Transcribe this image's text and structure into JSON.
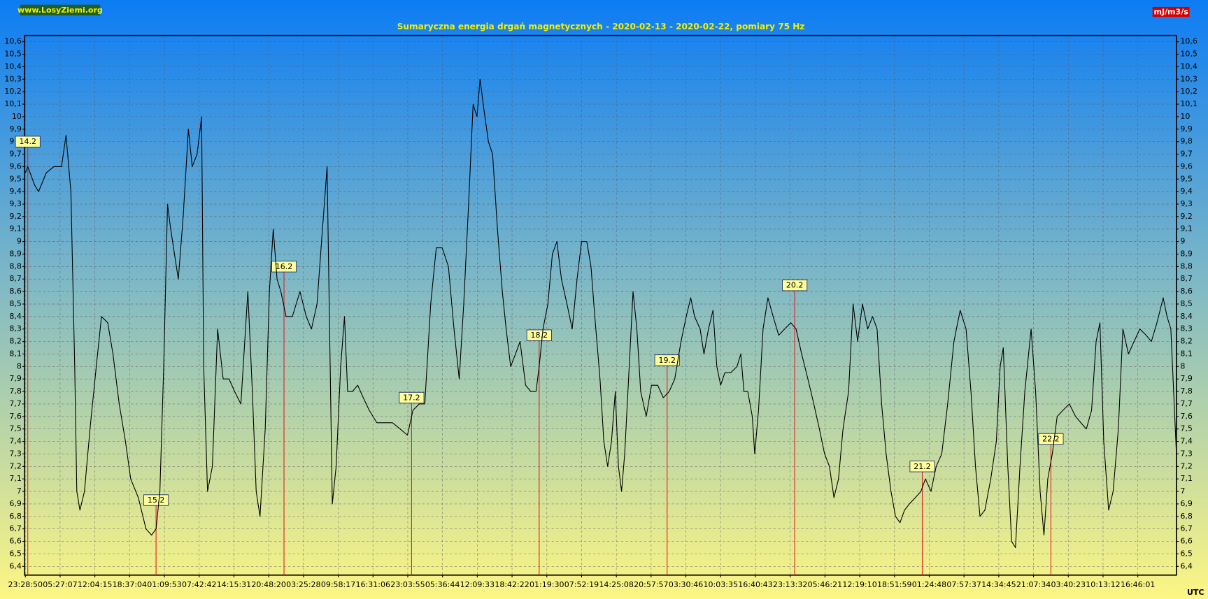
{
  "chart_data": {
    "type": "line",
    "title": "Sumaryczna energia drgań magnetycznych - 2020-02-13 - 2020-02-22, pomiary 75 Hz",
    "source": "www.LosyZiemi.org",
    "unit": "mJ/m3/s",
    "x_label": "UTC",
    "xlim": [
      -0.02,
      33.11
    ],
    "ylim": [
      6.33,
      10.65
    ],
    "grid": true,
    "xticks": [
      {
        "value": 0,
        "label": "23:28:50"
      },
      {
        "value": 1,
        "label": "05:27:07"
      },
      {
        "value": 2,
        "label": "12:04:15"
      },
      {
        "value": 3,
        "label": "18:37:04"
      },
      {
        "value": 4,
        "label": "01:09:53"
      },
      {
        "value": 5,
        "label": "07:42:42"
      },
      {
        "value": 6,
        "label": "14:15:31"
      },
      {
        "value": 7,
        "label": "20:48:20"
      },
      {
        "value": 8,
        "label": "03:25:28"
      },
      {
        "value": 9,
        "label": "09:58:17"
      },
      {
        "value": 10,
        "label": "16:31:06"
      },
      {
        "value": 11,
        "label": "23:03:55"
      },
      {
        "value": 12,
        "label": "05:36:44"
      },
      {
        "value": 13,
        "label": "12:09:33"
      },
      {
        "value": 14,
        "label": "18:42:22"
      },
      {
        "value": 15,
        "label": "01:19:30"
      },
      {
        "value": 16,
        "label": "07:52:19"
      },
      {
        "value": 17,
        "label": "14:25:08"
      },
      {
        "value": 18,
        "label": "20:57:57"
      },
      {
        "value": 19,
        "label": "03:30:46"
      },
      {
        "value": 20,
        "label": "10:03:35"
      },
      {
        "value": 21,
        "label": "16:40:43"
      },
      {
        "value": 22,
        "label": "23:13:32"
      },
      {
        "value": 23,
        "label": "05:46:21"
      },
      {
        "value": 24,
        "label": "12:19:10"
      },
      {
        "value": 25,
        "label": "18:51:59"
      },
      {
        "value": 26,
        "label": "01:24:48"
      },
      {
        "value": 27,
        "label": "07:57:37"
      },
      {
        "value": 28,
        "label": "14:34:45"
      },
      {
        "value": 29,
        "label": "21:07:34"
      },
      {
        "value": 30,
        "label": "03:40:23"
      },
      {
        "value": 31,
        "label": "10:13:12"
      },
      {
        "value": 32,
        "label": "16:46:01"
      }
    ],
    "yticks": [
      {
        "value": 6.4,
        "label": "6,4"
      },
      {
        "value": 6.5,
        "label": "6,5"
      },
      {
        "value": 6.6,
        "label": "6,6"
      },
      {
        "value": 6.7,
        "label": "6,7"
      },
      {
        "value": 6.8,
        "label": "6,8"
      },
      {
        "value": 6.9,
        "label": "6,9"
      },
      {
        "value": 7,
        "label": "7"
      },
      {
        "value": 7.1,
        "label": "7,1"
      },
      {
        "value": 7.2,
        "label": "7,2"
      },
      {
        "value": 7.3,
        "label": "7,3"
      },
      {
        "value": 7.4,
        "label": "7,4"
      },
      {
        "value": 7.5,
        "label": "7,5"
      },
      {
        "value": 7.6,
        "label": "7,6"
      },
      {
        "value": 7.7,
        "label": "7,7"
      },
      {
        "value": 7.8,
        "label": "7,8"
      },
      {
        "value": 7.9,
        "label": "7,9"
      },
      {
        "value": 8,
        "label": "8"
      },
      {
        "value": 8.1,
        "label": "8,1"
      },
      {
        "value": 8.2,
        "label": "8,2"
      },
      {
        "value": 8.3,
        "label": "8,3"
      },
      {
        "value": 8.4,
        "label": "8,4"
      },
      {
        "value": 8.5,
        "label": "8,5"
      },
      {
        "value": 8.6,
        "label": "8,6"
      },
      {
        "value": 8.7,
        "label": "8,7"
      },
      {
        "value": 8.8,
        "label": "8,8"
      },
      {
        "value": 8.9,
        "label": "8,9"
      },
      {
        "value": 9,
        "label": "9"
      },
      {
        "value": 9.1,
        "label": "9,1"
      },
      {
        "value": 9.2,
        "label": "9,2"
      },
      {
        "value": 9.3,
        "label": "9,3"
      },
      {
        "value": 9.4,
        "label": "9,4"
      },
      {
        "value": 9.5,
        "label": "9,5"
      },
      {
        "value": 9.6,
        "label": "9,6"
      },
      {
        "value": 9.7,
        "label": "9,7"
      },
      {
        "value": 9.8,
        "label": "9,8"
      },
      {
        "value": 9.9,
        "label": "9,9"
      },
      {
        "value": 10,
        "label": "10"
      },
      {
        "value": 10.1,
        "label": "10,1"
      },
      {
        "value": 10.2,
        "label": "10,2"
      },
      {
        "value": 10.3,
        "label": "10,3"
      },
      {
        "value": 10.4,
        "label": "10,4"
      },
      {
        "value": 10.5,
        "label": "10,5"
      },
      {
        "value": 10.6,
        "label": "10,6"
      }
    ],
    "annotations": [
      {
        "text": "14.2",
        "x": 0.07,
        "y": 9.8
      },
      {
        "text": "15.2",
        "x": 3.76,
        "y": 6.93
      },
      {
        "text": "16.2",
        "x": 7.44,
        "y": 8.8
      },
      {
        "text": "17.2",
        "x": 11.11,
        "y": 7.75
      },
      {
        "text": "18.2",
        "x": 14.78,
        "y": 8.25
      },
      {
        "text": "19.2",
        "x": 18.46,
        "y": 8.05
      },
      {
        "text": "20.2",
        "x": 22.13,
        "y": 8.65
      },
      {
        "text": "21.2",
        "x": 25.8,
        "y": 7.2
      },
      {
        "text": "22.2",
        "x": 29.5,
        "y": 7.42
      }
    ],
    "series": [
      {
        "color": "#000000",
        "x": [
          0,
          0.07,
          0.27,
          0.38,
          0.6,
          0.82,
          1.04,
          1.17,
          1.31,
          1.42,
          1.48,
          1.57,
          1.7,
          1.86,
          2.04,
          2.19,
          2.37,
          2.52,
          2.7,
          2.88,
          3.03,
          3.25,
          3.47,
          3.63,
          3.76,
          3.87,
          3.98,
          4.09,
          4.18,
          4.29,
          4.4,
          4.54,
          4.69,
          4.8,
          4.94,
          5.07,
          5.13,
          5.24,
          5.38,
          5.53,
          5.69,
          5.86,
          6.02,
          6.2,
          6.4,
          6.53,
          6.64,
          6.75,
          6.9,
          7.02,
          7.13,
          7.24,
          7.35,
          7.5,
          7.68,
          7.9,
          8.08,
          8.23,
          8.39,
          8.52,
          8.68,
          8.74,
          8.83,
          8.94,
          9.07,
          9.18,
          9.27,
          9.41,
          9.56,
          9.72,
          9.89,
          10.11,
          10.33,
          10.56,
          10.78,
          10.99,
          11.15,
          11.33,
          11.49,
          11.66,
          11.82,
          11.99,
          12.17,
          12.33,
          12.48,
          12.61,
          12.75,
          12.88,
          12.99,
          13.08,
          13.17,
          13.32,
          13.44,
          13.58,
          13.72,
          13.83,
          13.96,
          14.1,
          14.23,
          14.39,
          14.54,
          14.69,
          14.78,
          14.89,
          15.03,
          15.16,
          15.29,
          15.42,
          15.58,
          15.73,
          15.87,
          16,
          16.15,
          16.27,
          16.38,
          16.53,
          16.64,
          16.75,
          16.86,
          16.97,
          17.06,
          17.15,
          17.24,
          17.37,
          17.48,
          17.59,
          17.7,
          17.86,
          18.01,
          18.19,
          18.35,
          18.52,
          18.68,
          18.86,
          19.01,
          19.14,
          19.25,
          19.41,
          19.52,
          19.65,
          19.78,
          19.89,
          20,
          20.12,
          20.29,
          20.47,
          20.58,
          20.67,
          20.78,
          20.91,
          20.98,
          21.09,
          21.22,
          21.36,
          21.51,
          21.67,
          21.84,
          22.02,
          22.17,
          22.33,
          22.51,
          22.68,
          22.84,
          22.99,
          23.13,
          23.26,
          23.39,
          23.52,
          23.68,
          23.81,
          23.94,
          24.08,
          24.23,
          24.37,
          24.5,
          24.63,
          24.76,
          24.9,
          25.03,
          25.16,
          25.29,
          25.43,
          25.6,
          25.76,
          25.89,
          26.05,
          26.2,
          26.36,
          26.53,
          26.71,
          26.89,
          27.06,
          27.2,
          27.33,
          27.46,
          27.6,
          27.77,
          27.93,
          28.04,
          28.13,
          28.26,
          28.37,
          28.48,
          28.61,
          28.75,
          28.93,
          29.06,
          29.19,
          29.3,
          29.41,
          29.54,
          29.68,
          29.85,
          30.03,
          30.21,
          30.36,
          30.52,
          30.67,
          30.8,
          30.91,
          31.02,
          31.16,
          31.29,
          31.44,
          31.57,
          31.73,
          31.89,
          32.06,
          32.24,
          32.39,
          32.55,
          32.73,
          32.84,
          32.95,
          33.11
        ],
        "values": [
          9.55,
          9.6,
          9.45,
          9.4,
          9.55,
          9.6,
          9.6,
          9.85,
          9.4,
          8.0,
          7.0,
          6.85,
          7.0,
          7.5,
          8.0,
          8.4,
          8.35,
          8.1,
          7.7,
          7.4,
          7.1,
          6.95,
          6.7,
          6.65,
          6.7,
          7.0,
          8.0,
          9.3,
          9.1,
          8.9,
          8.7,
          9.2,
          9.9,
          9.6,
          9.7,
          10.0,
          8.0,
          7.0,
          7.2,
          8.3,
          7.9,
          7.9,
          7.8,
          7.7,
          8.6,
          7.8,
          7.0,
          6.8,
          7.5,
          8.6,
          9.1,
          8.7,
          8.6,
          8.4,
          8.4,
          8.6,
          8.4,
          8.3,
          8.5,
          9.0,
          9.6,
          8.5,
          6.9,
          7.2,
          8.0,
          8.4,
          7.8,
          7.8,
          7.85,
          7.75,
          7.65,
          7.55,
          7.55,
          7.55,
          7.5,
          7.45,
          7.65,
          7.7,
          7.7,
          8.5,
          8.95,
          8.95,
          8.8,
          8.3,
          7.9,
          8.5,
          9.3,
          10.1,
          10.0,
          10.3,
          10.1,
          9.8,
          9.7,
          9.1,
          8.6,
          8.3,
          8.0,
          8.1,
          8.2,
          7.85,
          7.8,
          7.8,
          8.0,
          8.3,
          8.5,
          8.9,
          9.0,
          8.7,
          8.5,
          8.3,
          8.7,
          9.0,
          9.0,
          8.8,
          8.4,
          7.9,
          7.4,
          7.2,
          7.4,
          7.8,
          7.2,
          7.0,
          7.3,
          8.0,
          8.6,
          8.3,
          7.8,
          7.6,
          7.85,
          7.85,
          7.75,
          7.8,
          7.9,
          8.2,
          8.4,
          8.55,
          8.4,
          8.3,
          8.1,
          8.3,
          8.45,
          8.0,
          7.85,
          7.95,
          7.95,
          8.0,
          8.1,
          7.8,
          7.8,
          7.6,
          7.3,
          7.65,
          8.3,
          8.55,
          8.4,
          8.25,
          8.3,
          8.35,
          8.3,
          8.1,
          7.9,
          7.7,
          7.5,
          7.3,
          7.2,
          6.95,
          7.1,
          7.5,
          7.8,
          8.5,
          8.2,
          8.5,
          8.3,
          8.4,
          8.3,
          7.7,
          7.3,
          7.0,
          6.8,
          6.75,
          6.85,
          6.9,
          6.95,
          7.0,
          7.1,
          7.0,
          7.2,
          7.3,
          7.7,
          8.2,
          8.45,
          8.3,
          7.8,
          7.2,
          6.8,
          6.85,
          7.1,
          7.4,
          8.0,
          8.15,
          7.2,
          6.6,
          6.55,
          7.2,
          7.8,
          8.3,
          7.8,
          7.0,
          6.65,
          7.1,
          7.3,
          7.6,
          7.65,
          7.7,
          7.6,
          7.55,
          7.5,
          7.65,
          8.2,
          8.35,
          7.4,
          6.85,
          7.0,
          7.5,
          8.3,
          8.1,
          8.2,
          8.3,
          8.25,
          8.2,
          8.35,
          8.55,
          8.4,
          8.3,
          7.3
        ]
      }
    ]
  }
}
